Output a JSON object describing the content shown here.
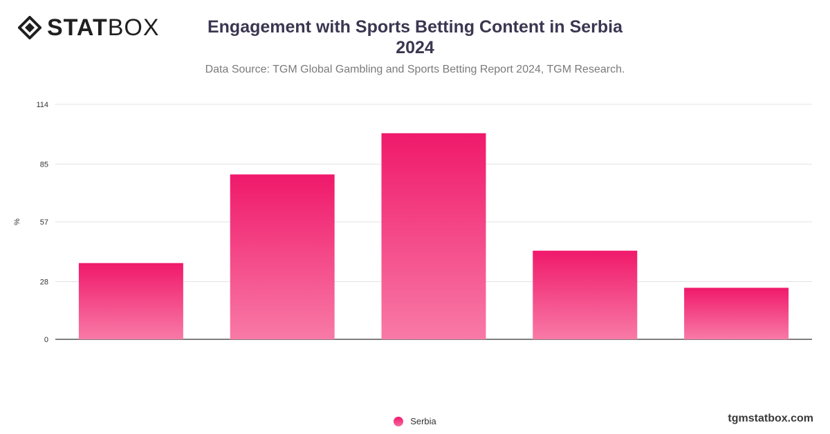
{
  "header": {
    "logo_bold": "STAT",
    "logo_light": "BOX",
    "title_line1": "Engagement with Sports Betting Content in Serbia",
    "title_line2": "2024",
    "subtitle": "Data Source: TGM Global Gambling and Sports Betting Report 2024, TGM Research."
  },
  "footer": {
    "url": "tgmstatbox.com"
  },
  "chart_data": {
    "type": "bar",
    "categories": [
      "",
      "",
      "",
      "",
      ""
    ],
    "series": [
      {
        "name": "Serbia",
        "values": [
          37,
          80,
          100,
          43,
          25
        ]
      }
    ],
    "ylabel": "%",
    "yticks": [
      0,
      28,
      57,
      85,
      114
    ],
    "ylim": [
      0,
      114
    ],
    "grid": true,
    "legend": "bottom-center",
    "colors": {
      "bar_top": "#f0196b",
      "bar_bottom": "#f87aa6",
      "grid": "#e3e3e3",
      "axis": "#333333"
    }
  }
}
